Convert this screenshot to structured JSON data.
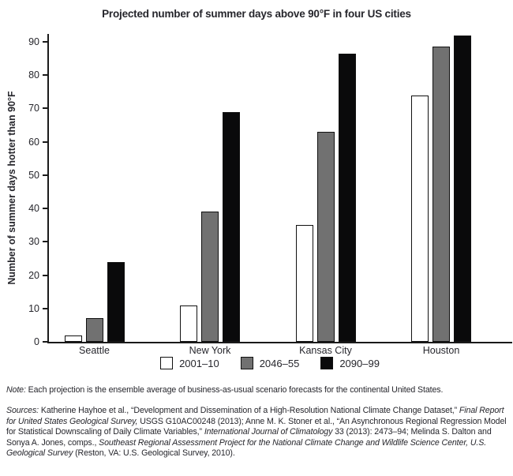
{
  "page": {
    "title": "Projected number of summer days above 90°F in four US cities"
  },
  "chart_data": {
    "type": "bar",
    "title": "Projected number of summer days above 90°F in four US cities",
    "xlabel": "",
    "ylabel": "Number of summer days hotter than 90°F",
    "categories": [
      "Seattle",
      "New York",
      "Kansas City",
      "Houston"
    ],
    "series": [
      {
        "name": "2001–10",
        "fill": "#ffffff",
        "values": [
          2,
          11,
          35,
          74
        ]
      },
      {
        "name": "2046–55",
        "fill": "#717171",
        "values": [
          7,
          39,
          63,
          88.5
        ]
      },
      {
        "name": "2090–99",
        "fill": "#0a0a0b",
        "values": [
          24,
          69,
          86.5,
          92
        ]
      }
    ],
    "ylim": [
      0,
      90
    ],
    "yticks": [
      0,
      10,
      20,
      30,
      40,
      50,
      60,
      70,
      80,
      90
    ],
    "grid": false,
    "legend_position": "bottom-center"
  },
  "legend": {
    "items": [
      {
        "label": "2001–10",
        "swatch": "#ffffff"
      },
      {
        "label": "2046–55",
        "swatch": "#717171"
      },
      {
        "label": "2090–99",
        "swatch": "#0a0a0b"
      }
    ]
  },
  "footnotes": {
    "note_segments": [
      {
        "text": "Note:",
        "italic": true
      },
      {
        "text": " Each projection is the ensemble average of business-as-usual scenario forecasts for the continental United States.",
        "italic": false
      }
    ],
    "sources_segments": [
      {
        "text": "Sources:",
        "italic": true
      },
      {
        "text": " Katherine Hayhoe et al., “Development and Dissemination of a High-Resolution National Climate Change Dataset,” ",
        "italic": false
      },
      {
        "text": "Final Report for United States Geological Survey,",
        "italic": true
      },
      {
        "text": " USGS G10AC00248 (2013); Anne M. K. Stoner et al., “An Asynchronous Regional Regression Model for Statistical Downscaling of Daily Climate Variables,” ",
        "italic": false
      },
      {
        "text": "International Journal of Climatology",
        "italic": true
      },
      {
        "text": " 33 (2013): 2473–94; Melinda S. Dalton and Sonya A. Jones, comps., ",
        "italic": false
      },
      {
        "text": "Southeast Regional Assessment Project for the National Climate Change and Wildlife Science Center, U.S. Geological Survey",
        "italic": true
      },
      {
        "text": " (Reston, VA: U.S. Geological Survey, 2010).",
        "italic": false
      }
    ]
  },
  "colors": {
    "text": "#26262c",
    "axis": "#1a1a1a",
    "bar_border": "#111111",
    "bar_white": "#ffffff",
    "bar_gray": "#717171",
    "bar_black": "#0a0a0b"
  }
}
